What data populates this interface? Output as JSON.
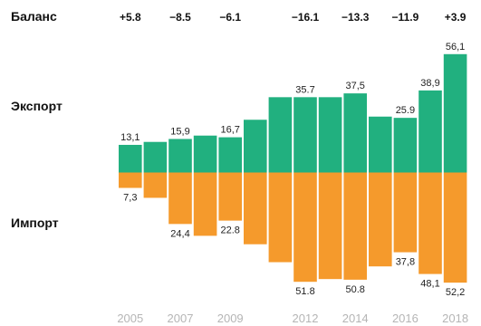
{
  "chart_data": {
    "type": "bar",
    "categories": [
      "2005",
      "2006",
      "2007",
      "2008",
      "2009",
      "2010",
      "2011",
      "2012",
      "2013",
      "2014",
      "2015",
      "2016",
      "2017",
      "2018"
    ],
    "row_labels": {
      "balance": "Баланс",
      "export": "Экспорт",
      "import": "Импорт"
    },
    "series": [
      {
        "name": "Экспорт",
        "color": "#21b07f",
        "values": [
          13.1,
          14.5,
          15.9,
          17.5,
          16.7,
          25.0,
          35.7,
          35.7,
          35.7,
          37.5,
          26.5,
          25.9,
          38.9,
          56.1
        ]
      },
      {
        "name": "Импорт",
        "color": "#f59a2c",
        "values": [
          7.3,
          12.0,
          24.4,
          30.0,
          22.8,
          34.0,
          42.5,
          51.8,
          50.5,
          50.8,
          44.5,
          37.8,
          48.1,
          52.2
        ]
      }
    ],
    "export_labels": [
      {
        "index": 0,
        "text": "13,1"
      },
      {
        "index": 2,
        "text": "15,9"
      },
      {
        "index": 4,
        "text": "16,7"
      },
      {
        "index": 7,
        "text": "35.7"
      },
      {
        "index": 9,
        "text": "37,5"
      },
      {
        "index": 11,
        "text": "25.9"
      },
      {
        "index": 12,
        "text": "38,9"
      },
      {
        "index": 13,
        "text": "56,1"
      }
    ],
    "import_labels": [
      {
        "index": 0,
        "text": "7,3"
      },
      {
        "index": 2,
        "text": "24,4"
      },
      {
        "index": 4,
        "text": "22.8"
      },
      {
        "index": 7,
        "text": "51.8"
      },
      {
        "index": 9,
        "text": "50.8"
      },
      {
        "index": 11,
        "text": "37,8"
      },
      {
        "index": 12,
        "text": "48,1"
      },
      {
        "index": 13,
        "text": "52,2"
      }
    ],
    "balance_labels": [
      {
        "index": 0,
        "text": "+5.8"
      },
      {
        "index": 2,
        "text": "−8.5"
      },
      {
        "index": 4,
        "text": "−6.1"
      },
      {
        "index": 7,
        "text": "−16.1"
      },
      {
        "index": 9,
        "text": "−13.3"
      },
      {
        "index": 11,
        "text": "−11.9"
      },
      {
        "index": 13,
        "text": "+3.9"
      }
    ],
    "year_labels": [
      {
        "index": 0,
        "text": "2005"
      },
      {
        "index": 2,
        "text": "2007"
      },
      {
        "index": 4,
        "text": "2009"
      },
      {
        "index": 7,
        "text": "2012"
      },
      {
        "index": 9,
        "text": "2014"
      },
      {
        "index": 11,
        "text": "2016"
      },
      {
        "index": 13,
        "text": "2018"
      }
    ],
    "grid": false,
    "legend": "none"
  }
}
